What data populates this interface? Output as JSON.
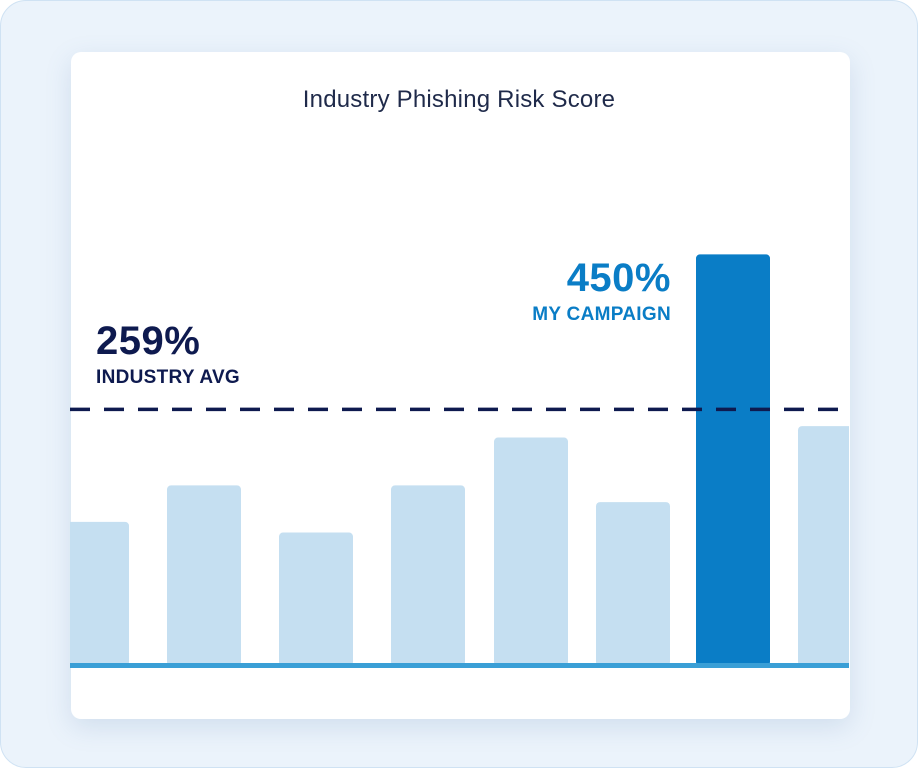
{
  "chart_data": {
    "type": "bar",
    "title": "Industry Phishing Risk Score",
    "xlabel": "",
    "ylabel": "",
    "values": [
      187,
      235,
      173,
      235,
      298,
      213,
      539,
      313
    ],
    "highlight_index": 6,
    "reference_line": {
      "value": 335,
      "style": "dashed"
    },
    "annotations": {
      "industry_avg": {
        "value": "259%",
        "label": "INDUSTRY AVG"
      },
      "my_campaign": {
        "value": "450%",
        "label": "MY CAMPAIGN"
      }
    },
    "grid": false,
    "legend": "none"
  },
  "colors": {
    "bar": "#c5dff1",
    "bar_highlight": "#0a7dc6",
    "baseline": "#3a9fd6",
    "reference_line": "#0e1a4f",
    "avg_text": "#0e1a4f",
    "campaign_text": "#0a7dc6"
  }
}
